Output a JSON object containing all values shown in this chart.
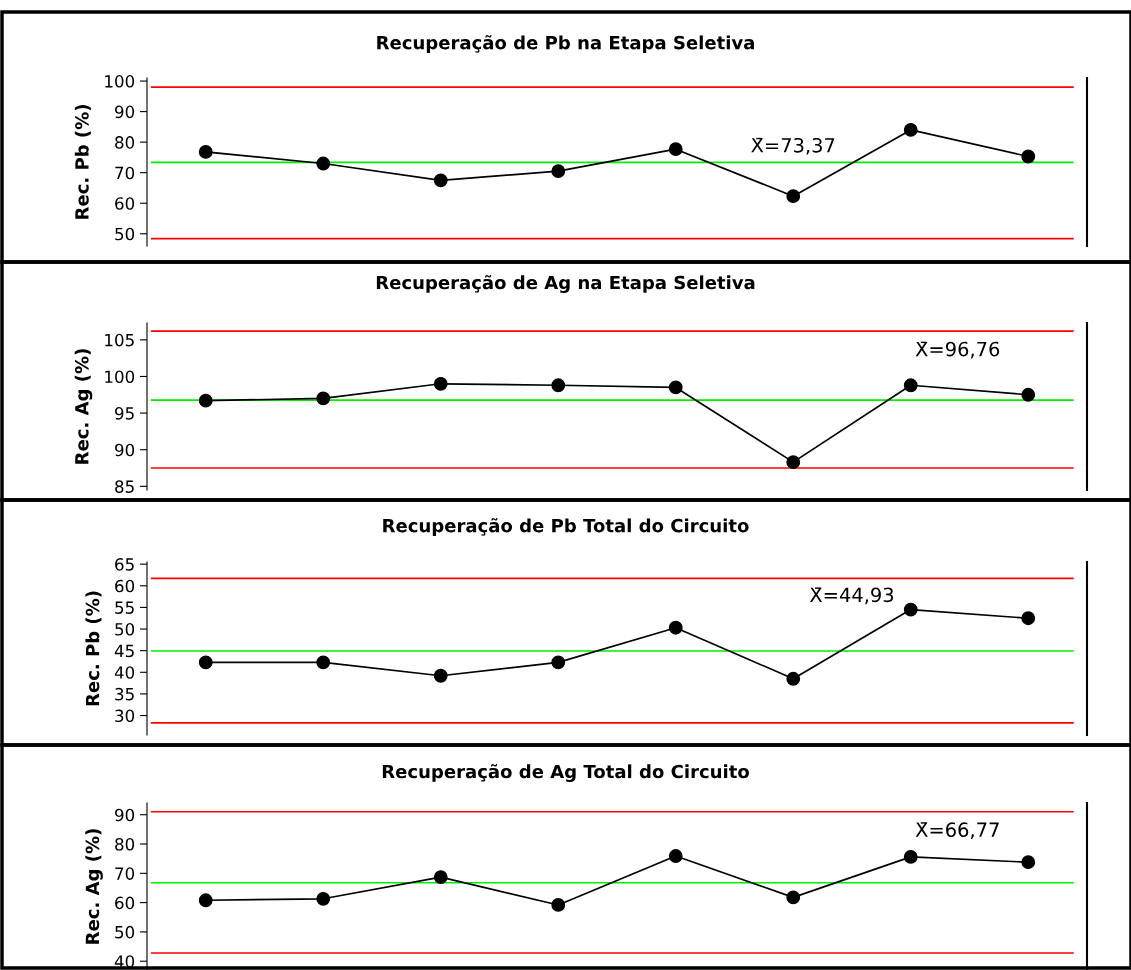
{
  "chart_data": [
    {
      "type": "line",
      "title": "Recuperação de Pb na Etapa Seletiva",
      "ylabel": "Rec. Pb (%)",
      "categories": [
        null,
        null,
        null,
        null,
        null,
        null,
        null,
        null
      ],
      "series": [
        {
          "color": "#000000",
          "values": [
            76.8,
            73.0,
            67.5,
            70.5,
            77.7,
            62.3,
            84.0,
            75.3
          ]
        }
      ],
      "marker": "circle",
      "ylim": [
        46,
        101
      ],
      "yticks": [
        50,
        60,
        70,
        80,
        90,
        100
      ],
      "tick_labels": "y",
      "ref_lines": [
        {
          "axis": "y",
          "value": 98,
          "color": "#ff0000"
        },
        {
          "axis": "y",
          "value": 73.37,
          "color": "#00ee00",
          "label": "X̄=73,37"
        },
        {
          "axis": "y",
          "value": 48.4,
          "color": "#ff0000"
        }
      ]
    },
    {
      "type": "line",
      "title": "Recuperação de Ag na Etapa Seletiva",
      "ylabel": "Rec. Ag (%)",
      "categories": [
        null,
        null,
        null,
        null,
        null,
        null,
        null,
        null
      ],
      "series": [
        {
          "color": "#000000",
          "values": [
            96.7,
            97.0,
            99.0,
            98.8,
            98.5,
            88.3,
            98.8,
            97.5
          ]
        }
      ],
      "marker": "circle",
      "ylim": [
        84.5,
        107.3
      ],
      "yticks": [
        85,
        90,
        95,
        100,
        105
      ],
      "tick_labels": "y",
      "ref_lines": [
        {
          "axis": "y",
          "value": 106.2,
          "color": "#ff0000"
        },
        {
          "axis": "y",
          "value": 96.76,
          "color": "#00ee00",
          "label": "X̄=96,76"
        },
        {
          "axis": "y",
          "value": 87.5,
          "color": "#ff0000"
        }
      ]
    },
    {
      "type": "line",
      "title": "Recuperação de Pb Total do Circuito",
      "ylabel": "Rec. Pb (%)",
      "categories": [
        null,
        null,
        null,
        null,
        null,
        null,
        null,
        null
      ],
      "series": [
        {
          "color": "#000000",
          "values": [
            42.3,
            42.3,
            39.2,
            42.3,
            50.3,
            38.5,
            54.5,
            52.5
          ]
        }
      ],
      "marker": "circle",
      "ylim": [
        25.5,
        65.5
      ],
      "yticks": [
        30,
        35,
        40,
        45,
        50,
        55,
        60,
        65
      ],
      "tick_labels": "y",
      "ref_lines": [
        {
          "axis": "y",
          "value": 61.7,
          "color": "#ff0000"
        },
        {
          "axis": "y",
          "value": 44.93,
          "color": "#00ee00",
          "label": "X̄=44,93"
        },
        {
          "axis": "y",
          "value": 28.3,
          "color": "#ff0000"
        }
      ]
    },
    {
      "type": "line",
      "title": "Recuperação de Ag Total do Circuito",
      "ylabel": "Rec. Ag (%)",
      "categories": [
        null,
        null,
        null,
        null,
        null,
        null,
        null,
        null
      ],
      "series": [
        {
          "color": "#000000",
          "values": [
            60.8,
            61.3,
            68.7,
            59.2,
            75.9,
            61.8,
            75.6,
            73.8
          ]
        }
      ],
      "marker": "circle",
      "ylim": [
        37,
        94
      ],
      "yticks": [
        40,
        50,
        60,
        70,
        80,
        90
      ],
      "tick_labels": "y",
      "ref_lines": [
        {
          "axis": "y",
          "value": 91.0,
          "color": "#ff0000"
        },
        {
          "axis": "y",
          "value": 66.77,
          "color": "#00ee00",
          "label": "X̄=66,77"
        },
        {
          "axis": "y",
          "value": 42.8,
          "color": "#ff0000"
        }
      ]
    }
  ]
}
